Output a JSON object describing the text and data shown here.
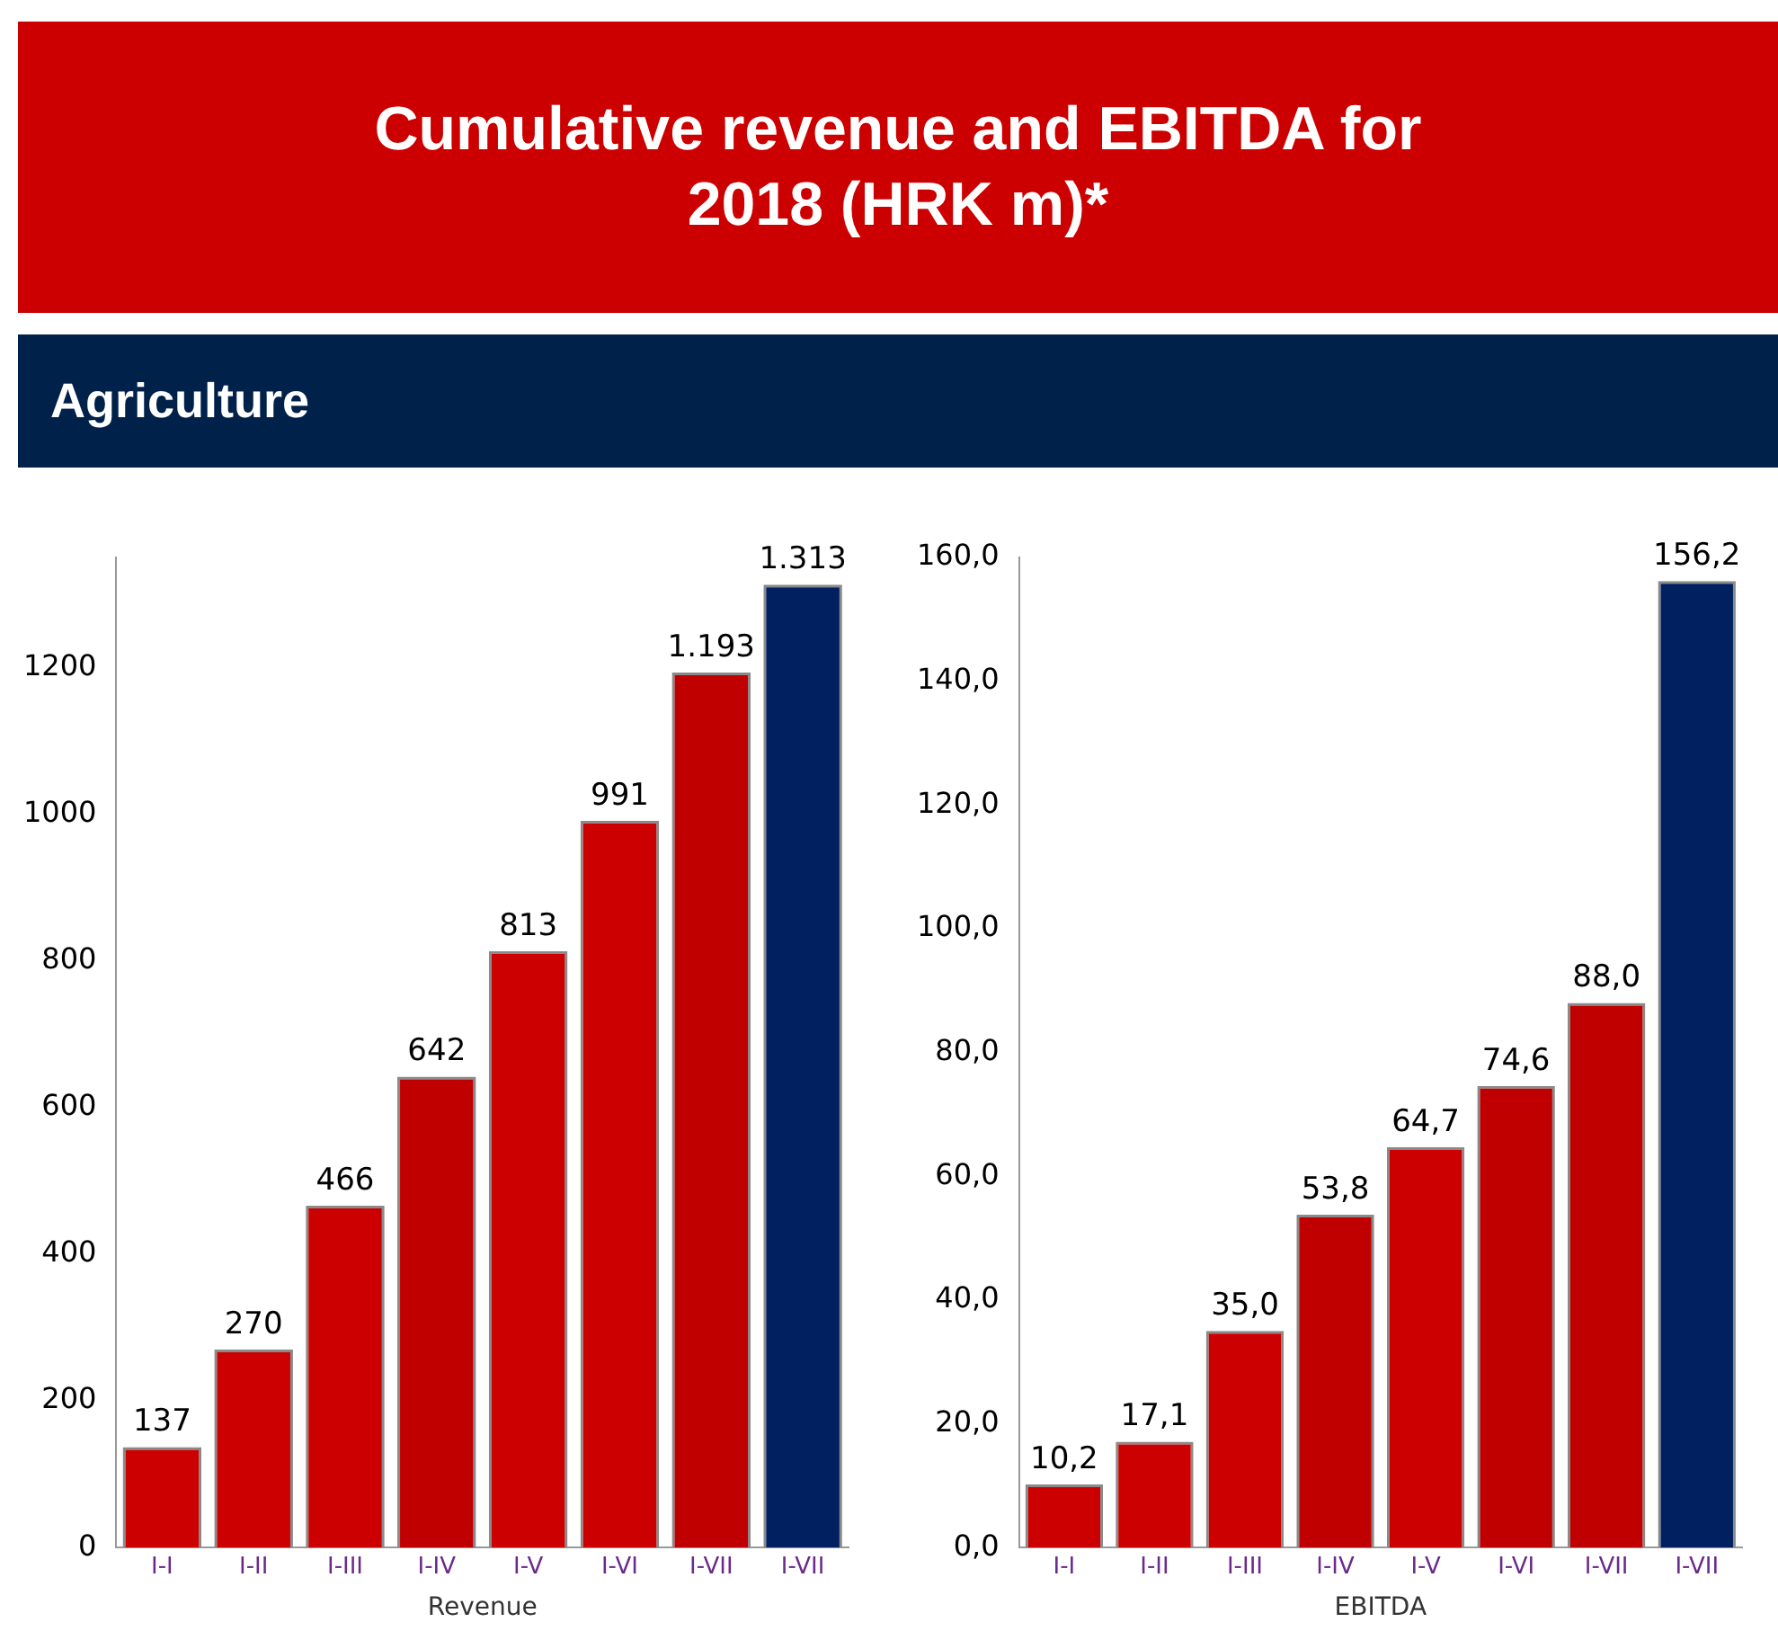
{
  "chart_data": [
    {
      "type": "bar",
      "title": "Cumulative revenue and EBITDA for 2018 (HRK m)*",
      "subtitle": "Agriculture",
      "xlabel": "Revenue",
      "categories": [
        "I-I",
        "I-II",
        "I-III",
        "I-IV",
        "I-V",
        "I-VI",
        "I-VII",
        "I-VII"
      ],
      "values": [
        137,
        270,
        466,
        642,
        813,
        991,
        1193,
        1313
      ],
      "value_labels": [
        "137",
        "270",
        "466",
        "642",
        "813",
        "991",
        "1.193",
        "1.313"
      ],
      "colors": [
        "#cc0000",
        "#cc0000",
        "#cc0000",
        "#c00000",
        "#cc0000",
        "#cc0000",
        "#c00000",
        "#002060"
      ],
      "ylim": [
        0,
        1350
      ],
      "yticks": [
        0,
        200,
        400,
        600,
        800,
        1000,
        1200
      ],
      "grid": false,
      "legend": false
    },
    {
      "type": "bar",
      "xlabel": "EBITDA",
      "categories": [
        "I-I",
        "I-II",
        "I-III",
        "I-IV",
        "I-V",
        "I-VI",
        "I-VII",
        "I-VII"
      ],
      "values": [
        10.2,
        17.1,
        35.0,
        53.8,
        64.7,
        74.6,
        88.0,
        156.2
      ],
      "value_labels": [
        "10,2",
        "17,1",
        "35,0",
        "53,8",
        "64,7",
        "74,6",
        "88,0",
        "156,2"
      ],
      "colors": [
        "#cc0000",
        "#cc0000",
        "#cc0000",
        "#c00000",
        "#cc0000",
        "#c00000",
        "#c00000",
        "#002060"
      ],
      "ylim": [
        0,
        160
      ],
      "yticks": [
        {
          "value": 0,
          "label": "0,0"
        },
        {
          "value": 20,
          "label": "20,0"
        },
        {
          "value": 40,
          "label": "40,0"
        },
        {
          "value": 60,
          "label": "60,0"
        },
        {
          "value": 80,
          "label": "80,0"
        },
        {
          "value": 100,
          "label": "100,0"
        },
        {
          "value": 120,
          "label": "120,0"
        },
        {
          "value": 140,
          "label": "140,0"
        },
        {
          "value": 160,
          "label": "160,0"
        }
      ],
      "grid": false,
      "legend": false
    }
  ]
}
